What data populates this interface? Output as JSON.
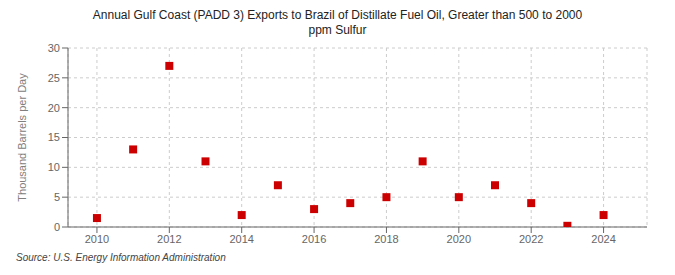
{
  "chart_data": {
    "type": "scatter",
    "title": "Annual Gulf Coast (PADD 3) Exports to Brazil of Distillate Fuel Oil, Greater than 500 to 2000\nppm Sulfur",
    "ylabel": "Thousand Barrels per Day",
    "annotations": [
      "Source: U.S. Energy Information Administration"
    ],
    "x": [
      2010,
      2011,
      2012,
      2013,
      2014,
      2015,
      2016,
      2017,
      2018,
      2019,
      2020,
      2021,
      2022,
      2023,
      2024
    ],
    "values": [
      1.5,
      13.0,
      27.0,
      11.0,
      2.0,
      7.0,
      3.0,
      4.0,
      5.0,
      11.0,
      5.0,
      7.0,
      4.0,
      0.2,
      2.0
    ],
    "color": "#cc0000",
    "marker": "square",
    "xlim": [
      2009.2,
      2025.2
    ],
    "xticks": [
      2010,
      2012,
      2014,
      2016,
      2018,
      2020,
      2022,
      2024
    ],
    "ylim": [
      0,
      30
    ],
    "yticks": [
      0,
      5,
      10,
      15,
      20,
      25,
      30
    ],
    "grid": true
  }
}
